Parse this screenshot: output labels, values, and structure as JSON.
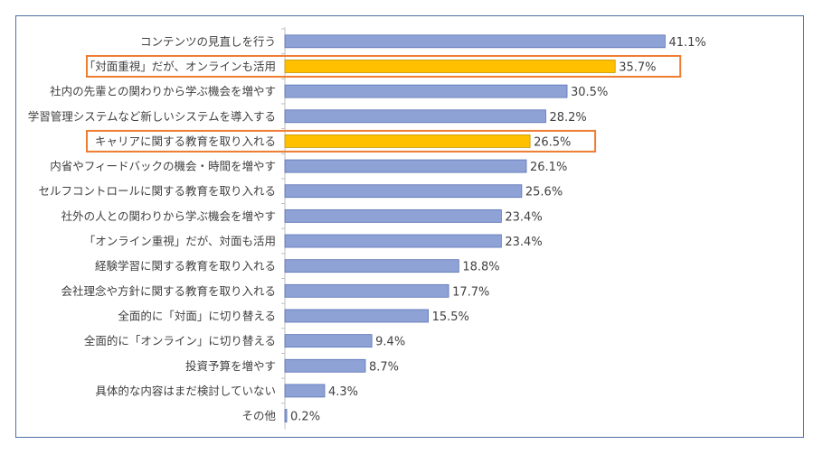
{
  "chart_data": {
    "type": "bar",
    "orientation": "horizontal",
    "categories": [
      "コンテンツの見直しを行う",
      "「対面重視」だが、オンラインも活用",
      "社内の先輩との関わりから学ぶ機会を増やす",
      "学習管理システムなど新しいシステムを導入する",
      "キャリアに関する教育を取り入れる",
      "内省やフィードバックの機会・時間を増やす",
      "セルフコントロールに関する教育を取り入れる",
      "社外の人との関わりから学ぶ機会を増やす",
      "「オンライン重視」だが、対面も活用",
      "経験学習に関する教育を取り入れる",
      "会社理念や方針に関する教育を取り入れる",
      "全面的に「対面」に切り替える",
      "全面的に「オンライン」に切り替える",
      "投資予算を増やす",
      "具体的な内容はまだ検討していない",
      "その他"
    ],
    "values": [
      41.1,
      35.7,
      30.5,
      28.2,
      26.5,
      26.1,
      25.6,
      23.4,
      23.4,
      18.8,
      17.7,
      15.5,
      9.4,
      8.7,
      4.3,
      0.2
    ],
    "value_labels": [
      "41.1%",
      "35.7%",
      "30.5%",
      "28.2%",
      "26.5%",
      "26.1%",
      "25.6%",
      "23.4%",
      "23.4%",
      "18.8%",
      "17.7%",
      "15.5%",
      "9.4%",
      "8.7%",
      "4.3%",
      "0.2%"
    ],
    "highlighted_categories": [
      1,
      4
    ],
    "xlim": [
      0,
      50
    ],
    "grid": false,
    "legend": "none",
    "title": "",
    "xlabel": "",
    "ylabel": ""
  },
  "colors": {
    "bar": "#8ea2d6",
    "bar_stroke": "#5b73b4",
    "highlight_bar": "#ffc000",
    "highlight_stroke": "#c89400",
    "highlight_box": "#ed7d31",
    "axis": "#bfbfbf",
    "text": "#404040",
    "frame": "#4f6fa6"
  }
}
